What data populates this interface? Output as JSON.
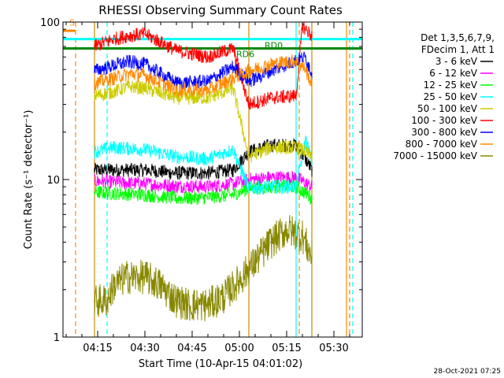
{
  "chart_data": {
    "type": "line",
    "title": "RHESSI Observing Summary Count Rates",
    "xlabel": "Start Time (10-Apr-15 04:01:02)",
    "ylabel": "Count Rate (s⁻¹ detector⁻¹)",
    "y_scale": "log",
    "ylim": [
      1,
      100
    ],
    "xlim": [
      "04:04",
      "05:39"
    ],
    "y_ticks": [
      "1",
      "10",
      "100"
    ],
    "x_ticks": [
      "04:15",
      "04:30",
      "04:45",
      "05:00",
      "05:15",
      "05:30"
    ],
    "timestamp": "28-Oct-2021 07:25",
    "legend_header": [
      "Det 1,3,5,6,7,9,",
      "FDecim 1, Att 1"
    ],
    "legend_position": "right",
    "data_window": [
      "04:14",
      "05:24"
    ],
    "series": [
      {
        "name": "3 - 6 keV",
        "color": "#000000",
        "x": [
          "04:14",
          "04:20",
          "04:30",
          "04:40",
          "04:50",
          "04:58",
          "05:03",
          "05:10",
          "05:18",
          "05:21",
          "05:23"
        ],
        "y": [
          11.5,
          11.5,
          11.5,
          11.0,
          11.0,
          11.5,
          15.0,
          16.5,
          16.5,
          13.5,
          11.5
        ]
      },
      {
        "name": "6 - 12 keV",
        "color": "#ff00ff",
        "x": [
          "04:14",
          "04:20",
          "04:30",
          "04:40",
          "04:50",
          "04:58",
          "05:03",
          "05:10",
          "05:18",
          "05:21",
          "05:23"
        ],
        "y": [
          9.8,
          9.6,
          9.4,
          9.1,
          9.0,
          9.4,
          10.0,
          10.3,
          10.3,
          9.5,
          9.0
        ]
      },
      {
        "name": "12 - 25 keV",
        "color": "#00ff00",
        "x": [
          "04:14",
          "04:20",
          "04:30",
          "04:40",
          "04:50",
          "04:58",
          "05:03",
          "05:10",
          "05:18",
          "05:21",
          "05:23"
        ],
        "y": [
          8.3,
          8.2,
          8.0,
          7.6,
          7.7,
          8.0,
          8.8,
          9.0,
          9.0,
          8.2,
          7.6
        ]
      },
      {
        "name": "25 - 50 keV",
        "color": "#00ffff",
        "x": [
          "04:14",
          "04:20",
          "04:30",
          "04:40",
          "04:50",
          "04:58",
          "05:03",
          "05:10",
          "05:18",
          "05:21",
          "05:23"
        ],
        "y": [
          15.0,
          16.0,
          15.5,
          14.0,
          13.5,
          15.5,
          8.8,
          9.0,
          9.0,
          18.0,
          13.0
        ]
      },
      {
        "name": "50 - 100 keV",
        "color": "#cccc00",
        "x": [
          "04:14",
          "04:20",
          "04:25",
          "04:30",
          "04:40",
          "04:50",
          "04:58",
          "05:03",
          "05:10",
          "05:18",
          "05:21",
          "05:23"
        ],
        "y": [
          34,
          36,
          39,
          38,
          33,
          33,
          38,
          14.0,
          16.0,
          16.0,
          15.0,
          14.0
        ]
      },
      {
        "name": "100 - 300 keV",
        "color": "#ff0000",
        "x": [
          "04:14",
          "04:20",
          "04:25",
          "04:30",
          "04:40",
          "04:50",
          "04:58",
          "05:03",
          "05:10",
          "05:18",
          "05:20",
          "05:21",
          "05:23"
        ],
        "y": [
          70,
          78,
          82,
          84,
          66,
          60,
          68,
          30,
          33,
          34,
          95,
          90,
          82
        ]
      },
      {
        "name": "300 - 800 keV",
        "color": "#0000ff",
        "x": [
          "04:14",
          "04:20",
          "04:25",
          "04:30",
          "04:40",
          "04:50",
          "04:58",
          "05:03",
          "05:10",
          "05:18",
          "05:21",
          "05:23"
        ],
        "y": [
          49,
          53,
          56,
          54,
          41,
          42,
          52,
          42,
          49,
          57,
          60,
          47
        ]
      },
      {
        "name": "800 - 7000 keV",
        "color": "#ff8800",
        "x": [
          "04:14",
          "04:20",
          "04:25",
          "04:30",
          "04:40",
          "04:50",
          "04:58",
          "05:03",
          "05:10",
          "05:18",
          "05:21",
          "05:23"
        ],
        "y": [
          41,
          44,
          47,
          46,
          37,
          37,
          44,
          49,
          54,
          57,
          50,
          40
        ]
      },
      {
        "name": "7000 - 15000 keV",
        "color": "#888800",
        "x": [
          "04:14",
          "04:18",
          "04:20",
          "04:24",
          "04:30",
          "04:34",
          "04:40",
          "04:44",
          "04:50",
          "04:55",
          "05:00",
          "05:05",
          "05:10",
          "05:15",
          "05:20",
          "05:23"
        ],
        "y": [
          1.7,
          1.7,
          2.1,
          2.4,
          2.4,
          2.2,
          1.7,
          1.6,
          1.6,
          1.8,
          2.3,
          3.0,
          4.0,
          4.8,
          4.4,
          3.2
        ]
      }
    ],
    "annotations": [
      {
        "text": "S",
        "color": "#ff8800",
        "x": "04:06",
        "y": 95
      },
      {
        "text": "RD0",
        "color": "#008800",
        "x": "05:08",
        "y": 68
      },
      {
        "text": "RD6",
        "color": "#008800",
        "x": "04:59",
        "y": 60
      }
    ],
    "vertical_lines": [
      {
        "x": "04:08",
        "color": "#ff8800",
        "style": "dashed"
      },
      {
        "x": "04:14",
        "color": "#cc8800",
        "style": "solid"
      },
      {
        "x": "04:18",
        "color": "#00ffff",
        "style": "dashed"
      },
      {
        "x": "05:03",
        "color": "#cc8800",
        "style": "solid"
      },
      {
        "x": "05:18",
        "color": "#00ffff",
        "style": "solid"
      },
      {
        "x": "05:19",
        "color": "#ff8800",
        "style": "dashed"
      },
      {
        "x": "05:23",
        "color": "#cc8800",
        "style": "solid"
      },
      {
        "x": "05:34",
        "color": "#ff8800",
        "style": "solid"
      },
      {
        "x": "05:35",
        "color": "#ff8800",
        "style": "dashed"
      },
      {
        "x": "05:36",
        "color": "#00ffff",
        "style": "dashed"
      }
    ],
    "horizontal_bars": [
      {
        "color": "#008800",
        "y": 68,
        "x_range": [
          "04:01",
          "05:39"
        ]
      },
      {
        "color": "#00ffff",
        "y": 78,
        "x_range": [
          "04:01",
          "05:39"
        ]
      },
      {
        "color": "#ff8800",
        "y": 88,
        "x_range": [
          "04:01",
          "04:08"
        ]
      }
    ]
  }
}
